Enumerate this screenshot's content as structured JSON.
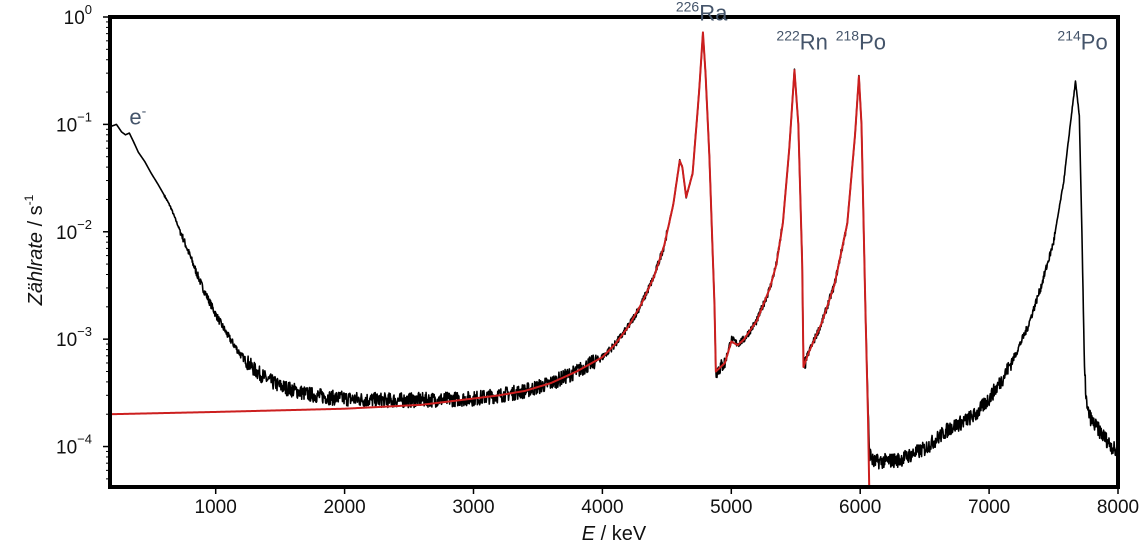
{
  "chart_data": {
    "type": "line",
    "xlabel": {
      "italic": "E",
      "rest": " / keV"
    },
    "ylabel": {
      "italic": "Zählrate",
      "rest": "  /  s",
      "sup": "-1"
    },
    "xlim": [
      180,
      8000
    ],
    "ylim": [
      4.2e-05,
      1.0
    ],
    "yscale": "log",
    "grid": false,
    "x_ticks": [
      {
        "value": 1000,
        "label": "1000"
      },
      {
        "value": 2000,
        "label": "2000"
      },
      {
        "value": 3000,
        "label": "3000"
      },
      {
        "value": 4000,
        "label": "4000"
      },
      {
        "value": 5000,
        "label": "5000"
      },
      {
        "value": 6000,
        "label": "6000"
      },
      {
        "value": 7000,
        "label": "7000"
      },
      {
        "value": 8000,
        "label": "8000"
      }
    ],
    "y_ticks": [
      {
        "value": 1.0,
        "base": "10",
        "exp": "0"
      },
      {
        "value": 0.1,
        "base": "10",
        "exp": "−1"
      },
      {
        "value": 0.01,
        "base": "10",
        "exp": "−2"
      },
      {
        "value": 0.001,
        "base": "10",
        "exp": "−3"
      },
      {
        "value": 0.0001,
        "base": "10",
        "exp": "−4"
      }
    ],
    "annotations": [
      {
        "sup": "",
        "text": "e",
        "post_sup": "-",
        "x": 330,
        "y": 0.1
      },
      {
        "sup": "226",
        "text": "Ra",
        "x": 4570,
        "y": 0.93
      },
      {
        "sup": "222",
        "text": "Rn",
        "x": 5350,
        "y": 0.5
      },
      {
        "sup": "218",
        "text": "Po",
        "x": 5810,
        "y": 0.5
      },
      {
        "sup": "214",
        "text": "Po",
        "x": 7530,
        "y": 0.5
      }
    ],
    "series": [
      {
        "color": "#000000",
        "noisy": true,
        "points": [
          [
            180,
            0.095
          ],
          [
            230,
            0.1
          ],
          [
            270,
            0.085
          ],
          [
            300,
            0.08
          ],
          [
            330,
            0.083
          ],
          [
            360,
            0.07
          ],
          [
            400,
            0.055
          ],
          [
            450,
            0.045
          ],
          [
            500,
            0.035
          ],
          [
            550,
            0.028
          ],
          [
            600,
            0.022
          ],
          [
            650,
            0.017
          ],
          [
            700,
            0.012
          ],
          [
            750,
            0.0085
          ],
          [
            800,
            0.006
          ],
          [
            850,
            0.0042
          ],
          [
            900,
            0.003
          ],
          [
            1000,
            0.0017
          ],
          [
            1100,
            0.00105
          ],
          [
            1200,
            0.0007
          ],
          [
            1300,
            0.00052
          ],
          [
            1400,
            0.00042
          ],
          [
            1500,
            0.000365
          ],
          [
            1700,
            0.00031
          ],
          [
            1900,
            0.000285
          ],
          [
            2100,
            0.000275
          ],
          [
            2300,
            0.00027
          ],
          [
            2500,
            0.00027
          ],
          [
            2800,
            0.000275
          ],
          [
            3000,
            0.00028
          ],
          [
            3200,
            0.0003
          ],
          [
            3400,
            0.00033
          ],
          [
            3600,
            0.00039
          ],
          [
            3800,
            0.0005
          ],
          [
            4000,
            0.00068
          ],
          [
            4100,
            0.0009
          ],
          [
            4200,
            0.0013
          ],
          [
            4300,
            0.0021
          ],
          [
            4400,
            0.0038
          ],
          [
            4480,
            0.0075
          ],
          [
            4550,
            0.018
          ],
          [
            4600,
            0.046
          ],
          [
            4620,
            0.04
          ],
          [
            4650,
            0.021
          ],
          [
            4700,
            0.035
          ],
          [
            4750,
            0.2
          ],
          [
            4780,
            0.7
          ],
          [
            4800,
            0.3
          ],
          [
            4830,
            0.05
          ],
          [
            4870,
            0.002
          ],
          [
            4880,
            0.0005
          ],
          [
            4950,
            0.0006
          ],
          [
            5000,
            0.001
          ],
          [
            5050,
            0.0009
          ],
          [
            5100,
            0.001
          ],
          [
            5200,
            0.0015
          ],
          [
            5300,
            0.003
          ],
          [
            5350,
            0.005
          ],
          [
            5400,
            0.012
          ],
          [
            5450,
            0.06
          ],
          [
            5490,
            0.32
          ],
          [
            5520,
            0.1
          ],
          [
            5550,
            0.005
          ],
          [
            5560,
            0.00055
          ],
          [
            5600,
            0.00075
          ],
          [
            5700,
            0.0014
          ],
          [
            5800,
            0.0032
          ],
          [
            5900,
            0.012
          ],
          [
            5960,
            0.08
          ],
          [
            5990,
            0.28
          ],
          [
            6010,
            0.1
          ],
          [
            6040,
            0.002
          ],
          [
            6070,
            9e-05
          ],
          [
            6100,
            7.2e-05
          ],
          [
            6300,
            7.5e-05
          ],
          [
            6500,
            9.5e-05
          ],
          [
            6600,
            0.00012
          ],
          [
            6700,
            0.00015
          ],
          [
            6800,
            0.00017
          ],
          [
            6900,
            0.0002
          ],
          [
            7000,
            0.00028
          ],
          [
            7100,
            0.00042
          ],
          [
            7200,
            0.0007
          ],
          [
            7300,
            0.0013
          ],
          [
            7400,
            0.003
          ],
          [
            7500,
            0.008
          ],
          [
            7580,
            0.03
          ],
          [
            7630,
            0.1
          ],
          [
            7670,
            0.25
          ],
          [
            7700,
            0.12
          ],
          [
            7720,
            0.01
          ],
          [
            7740,
            0.0005
          ],
          [
            7760,
            0.00022
          ],
          [
            7800,
            0.00017
          ],
          [
            7900,
            0.00012
          ],
          [
            8000,
            8.5e-05
          ]
        ]
      },
      {
        "color": "#cc1f1f",
        "noisy": false,
        "points": [
          [
            180,
            0.0002
          ],
          [
            1000,
            0.00021
          ],
          [
            2000,
            0.000225
          ],
          [
            2600,
            0.000245
          ],
          [
            3000,
            0.00028
          ],
          [
            3200,
            0.0003
          ],
          [
            3400,
            0.00033
          ],
          [
            3600,
            0.00039
          ],
          [
            3800,
            0.0005
          ],
          [
            4000,
            0.00068
          ],
          [
            4100,
            0.0009
          ],
          [
            4200,
            0.0013
          ],
          [
            4300,
            0.0021
          ],
          [
            4400,
            0.0038
          ],
          [
            4480,
            0.0075
          ],
          [
            4550,
            0.018
          ],
          [
            4600,
            0.046
          ],
          [
            4620,
            0.04
          ],
          [
            4650,
            0.021
          ],
          [
            4700,
            0.035
          ],
          [
            4750,
            0.2
          ],
          [
            4780,
            0.72
          ],
          [
            4800,
            0.3
          ],
          [
            4830,
            0.05
          ],
          [
            4870,
            0.002
          ],
          [
            4880,
            0.0005
          ],
          [
            4950,
            0.0006
          ],
          [
            5000,
            0.00095
          ],
          [
            5050,
            0.00088
          ],
          [
            5100,
            0.001
          ],
          [
            5200,
            0.0015
          ],
          [
            5300,
            0.003
          ],
          [
            5350,
            0.005
          ],
          [
            5400,
            0.012
          ],
          [
            5450,
            0.06
          ],
          [
            5490,
            0.32
          ],
          [
            5520,
            0.1
          ],
          [
            5550,
            0.005
          ],
          [
            5560,
            0.00055
          ],
          [
            5600,
            0.00075
          ],
          [
            5700,
            0.0014
          ],
          [
            5800,
            0.0032
          ],
          [
            5900,
            0.012
          ],
          [
            5960,
            0.08
          ],
          [
            5990,
            0.28
          ],
          [
            6010,
            0.1
          ],
          [
            6040,
            0.002
          ],
          [
            6060,
            0.0002
          ],
          [
            6070,
            4.2e-05
          ]
        ]
      }
    ]
  }
}
